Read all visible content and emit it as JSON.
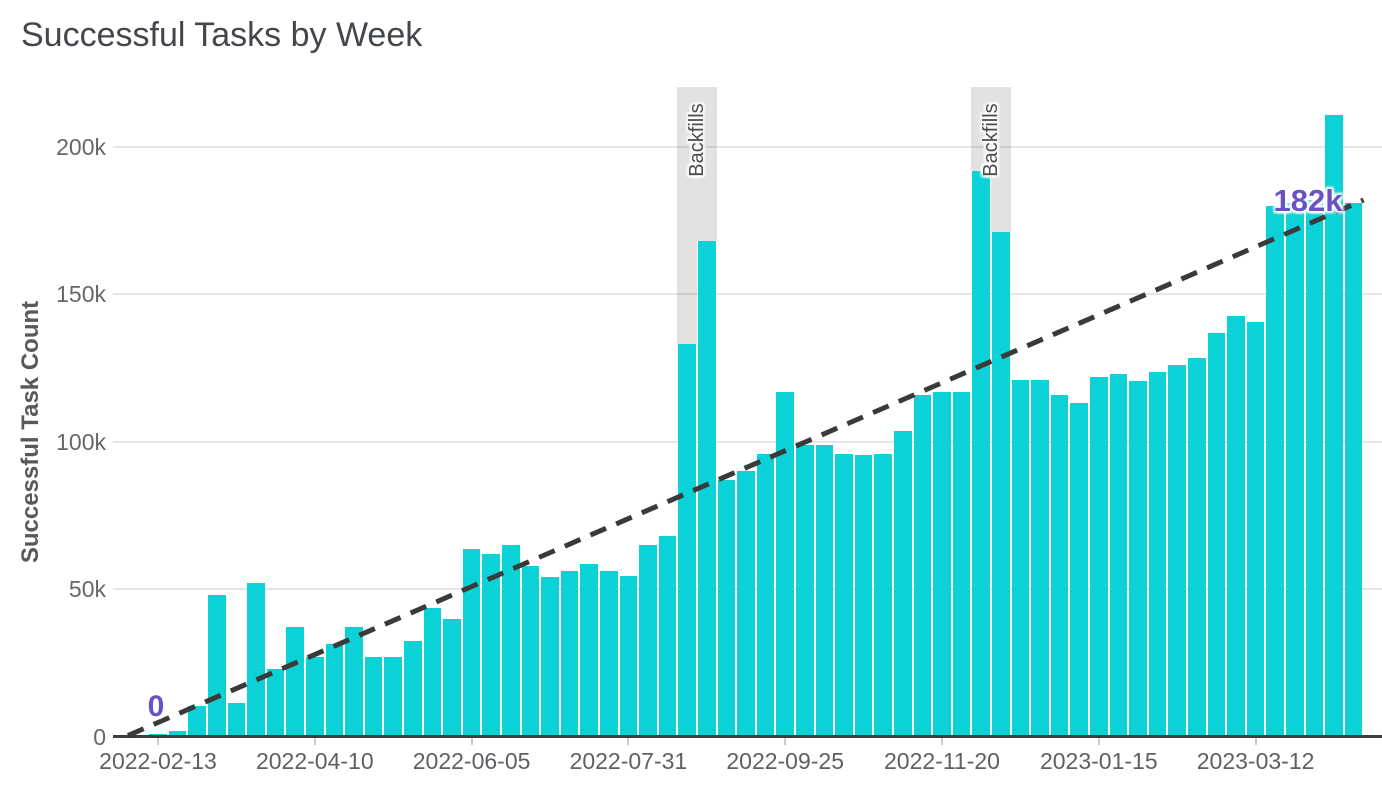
{
  "title": "Successful Tasks by Week",
  "colors": {
    "bar": "#0bd2d6",
    "backfill_band": "#d9d9d9",
    "trend_line": "#3a3a3a",
    "annotation_purple": "#6b51c8",
    "gridline": "#e4e5e6",
    "axis_line": "#3b3e40"
  },
  "chart_data": {
    "type": "bar",
    "title": "Successful Tasks by Week",
    "xlabel": "",
    "ylabel": "Successful Task Count",
    "unit": "thousands of tasks",
    "ylim_k": [
      0,
      225
    ],
    "grid": "horizontal",
    "legend": "none",
    "y_ticks": [
      {
        "label": "0",
        "value_k": 0
      },
      {
        "label": "50k",
        "value_k": 50
      },
      {
        "label": "100k",
        "value_k": 100
      },
      {
        "label": "150k",
        "value_k": 150
      },
      {
        "label": "200k",
        "value_k": 200
      }
    ],
    "x_tick_labels": [
      "2022-02-13",
      "2022-04-10",
      "2022-06-05",
      "2022-07-31",
      "2022-09-25",
      "2022-11-20",
      "2023-01-15",
      "2023-03-12"
    ],
    "x_tick_every_weeks": 8,
    "categories": [
      "2022-02-13",
      "2022-02-20",
      "2022-02-27",
      "2022-03-06",
      "2022-03-13",
      "2022-03-20",
      "2022-03-27",
      "2022-04-03",
      "2022-04-10",
      "2022-04-17",
      "2022-04-24",
      "2022-05-01",
      "2022-05-08",
      "2022-05-15",
      "2022-05-22",
      "2022-05-29",
      "2022-06-05",
      "2022-06-12",
      "2022-06-19",
      "2022-06-26",
      "2022-07-03",
      "2022-07-10",
      "2022-07-17",
      "2022-07-24",
      "2022-07-31",
      "2022-08-07",
      "2022-08-14",
      "2022-08-21",
      "2022-08-28",
      "2022-09-04",
      "2022-09-11",
      "2022-09-18",
      "2022-09-25",
      "2022-10-02",
      "2022-10-09",
      "2022-10-16",
      "2022-10-23",
      "2022-10-30",
      "2022-11-06",
      "2022-11-13",
      "2022-11-20",
      "2022-11-27",
      "2022-12-04",
      "2022-12-11",
      "2022-12-18",
      "2022-12-25",
      "2023-01-01",
      "2023-01-08",
      "2023-01-15",
      "2023-01-22",
      "2023-01-29",
      "2023-02-05",
      "2023-02-12",
      "2023-02-19",
      "2023-02-26",
      "2023-03-05",
      "2023-03-12",
      "2023-03-19",
      "2023-03-26",
      "2023-04-02",
      "2023-04-09",
      "2023-04-16"
    ],
    "values_k": [
      1,
      2,
      10.5,
      48,
      11.5,
      52,
      23,
      37,
      27,
      31.5,
      37,
      27,
      27,
      32.5,
      43.5,
      40,
      63.5,
      62,
      65,
      58,
      54,
      56,
      58.5,
      56,
      54.5,
      65,
      68,
      133,
      168,
      87,
      90,
      96,
      117,
      99,
      99,
      96,
      95.5,
      96,
      103.5,
      116,
      117,
      117,
      192,
      171,
      121,
      121,
      116,
      113,
      122,
      123,
      120.5,
      123.5,
      126,
      128.5,
      137,
      142.5,
      140.5,
      180,
      181,
      182,
      211,
      181
    ],
    "backfill_indices": [
      27,
      28,
      42,
      43
    ],
    "backfill_label": "Backfills",
    "backfill_label_positions_week_index": [
      27.5,
      42.5
    ],
    "trend": {
      "style": "dashed-line",
      "start_value_k": 0,
      "end_value_k": 182,
      "start_label": "0",
      "end_label": "182k"
    }
  }
}
